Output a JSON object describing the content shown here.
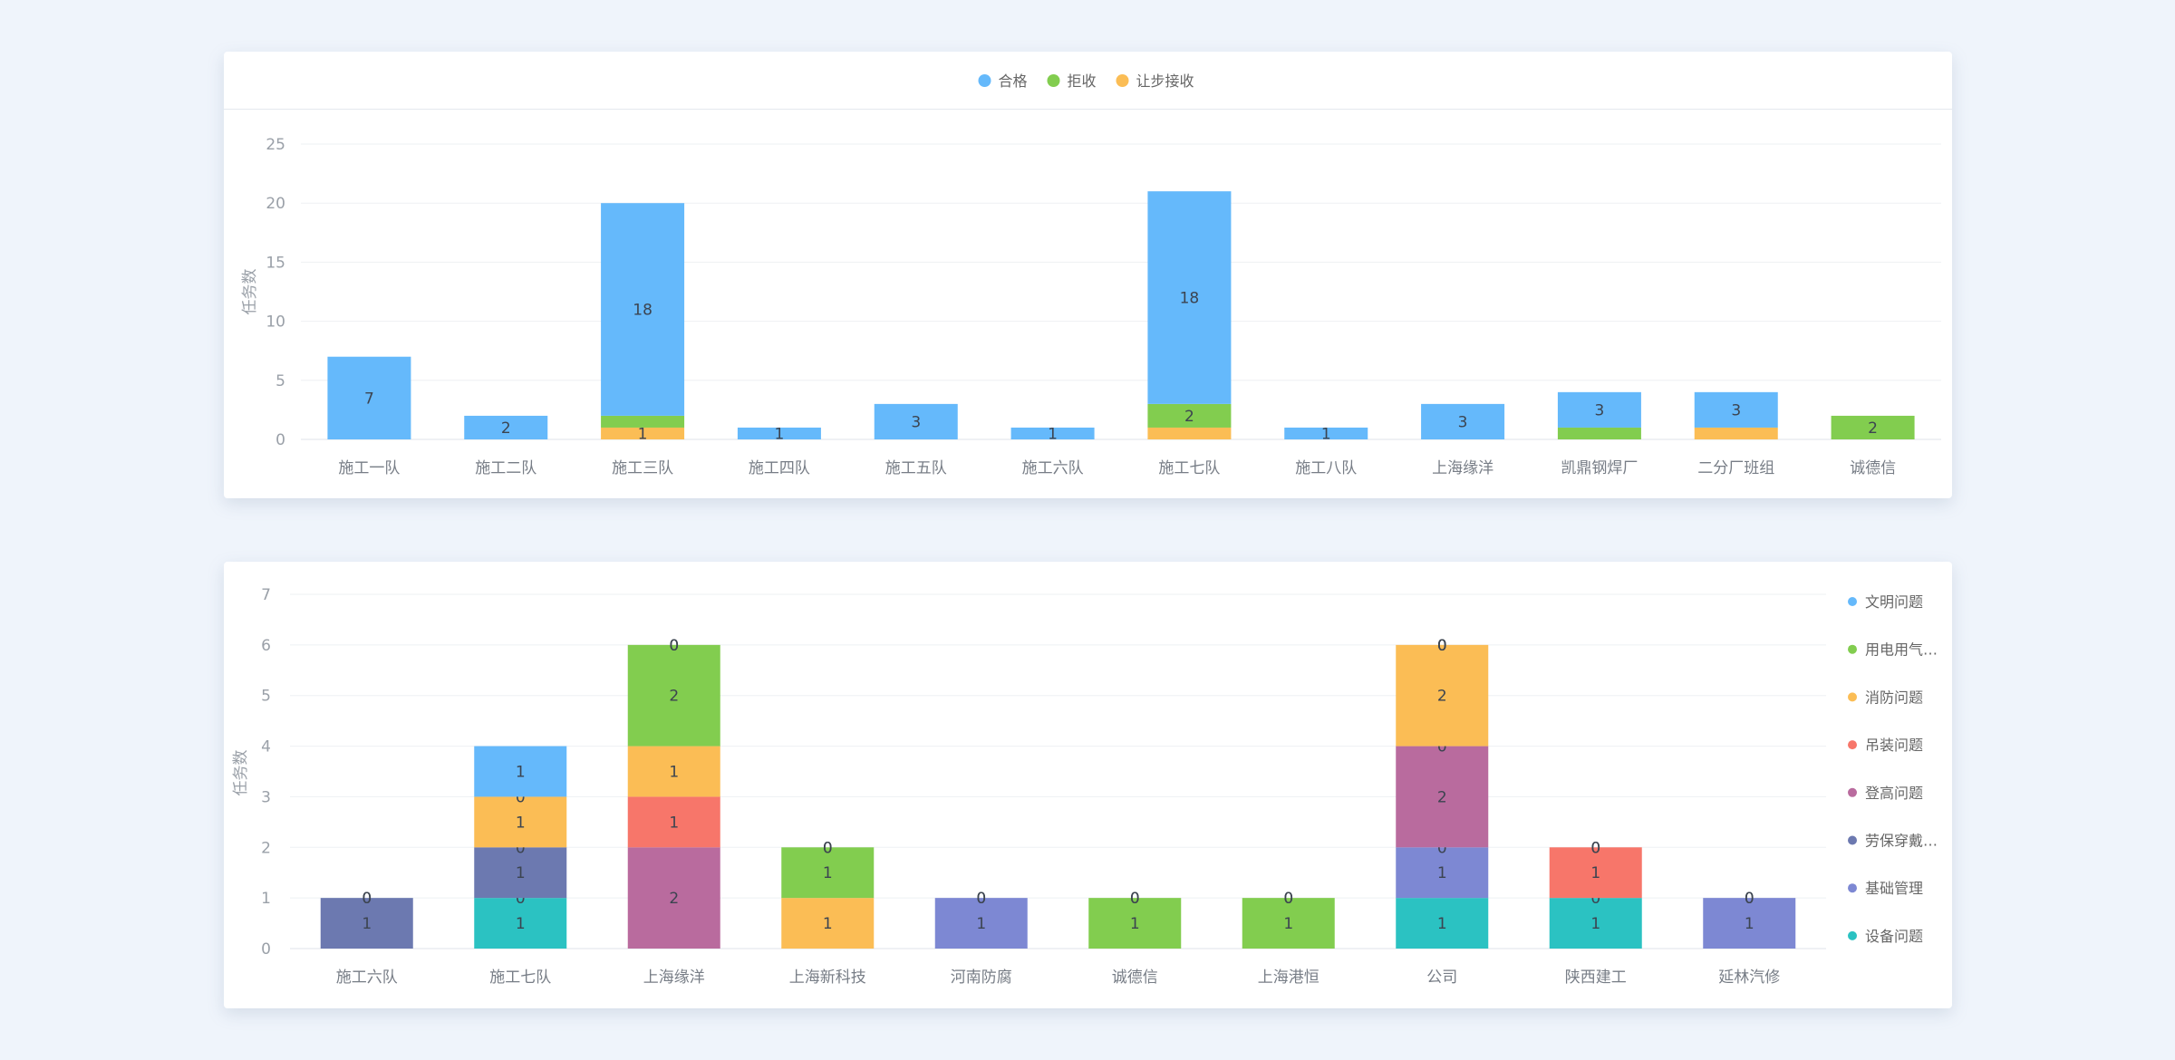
{
  "charts": [
    {
      "type": "bar",
      "stacked": true,
      "ylabel": "任务数",
      "ylim": [
        0,
        25
      ],
      "yticks": [
        "0",
        "5",
        "10",
        "15",
        "20",
        "25"
      ],
      "grid": true,
      "legend_position": "top-center",
      "categories": [
        "施工一队",
        "施工二队",
        "施工三队",
        "施工四队",
        "施工五队",
        "施工六队",
        "施工七队",
        "施工八队",
        "上海缘洋",
        "凯鼎钢焊厂",
        "二分厂班组",
        "诚德信"
      ],
      "series": [
        {
          "name": "让步接收",
          "color": "#fbbd55",
          "values": [
            0,
            0,
            1,
            0,
            0,
            0,
            1,
            0,
            0,
            0,
            1,
            0
          ],
          "labels": [
            "",
            "",
            "1",
            "",
            "",
            "",
            "",
            "",
            "",
            "",
            "",
            ""
          ]
        },
        {
          "name": "拒收",
          "color": "#82cd4f",
          "values": [
            0,
            0,
            1,
            0,
            0,
            0,
            2,
            0,
            0,
            1,
            0,
            2
          ],
          "labels": [
            "",
            "",
            "",
            "",
            "",
            "",
            "2",
            "",
            "",
            "",
            "",
            "2"
          ]
        },
        {
          "name": "合格",
          "color": "#65b9fb",
          "values": [
            7,
            2,
            18,
            1,
            3,
            1,
            18,
            1,
            3,
            3,
            3,
            0
          ],
          "labels": [
            "7",
            "2",
            "18",
            "1",
            "3",
            "1",
            "18",
            "1",
            "3",
            "3",
            "3",
            ""
          ]
        }
      ],
      "legend_order": [
        "合格",
        "拒收",
        "让步接收"
      ]
    },
    {
      "type": "bar",
      "stacked": true,
      "ylabel": "任务数",
      "ylim": [
        0,
        7
      ],
      "yticks": [
        "0",
        "1",
        "2",
        "3",
        "4",
        "5",
        "6",
        "7"
      ],
      "grid": true,
      "legend_position": "right",
      "categories": [
        "施工六队",
        "施工七队",
        "上海缘洋",
        "上海新科技",
        "河南防腐",
        "诚德信",
        "上海港恒",
        "公司",
        "陕西建工",
        "延林汽修"
      ],
      "series": [
        {
          "name": "设备问题",
          "color": "#2bc2c2",
          "values": [
            0,
            1,
            0,
            0,
            0,
            0,
            0,
            1,
            1,
            0
          ],
          "labels": [
            "",
            "1",
            "",
            "",
            "",
            "",
            "",
            "1",
            "1",
            ""
          ]
        },
        {
          "name": "基础管理",
          "color": "#7d88d3",
          "values": [
            0,
            0,
            0,
            0,
            1,
            0,
            0,
            1,
            0,
            1
          ],
          "labels": [
            "",
            "0",
            "",
            "",
            "1",
            "",
            "",
            "1",
            "0",
            "1"
          ]
        },
        {
          "name": "劳保穿戴…",
          "color": "#6c79b0",
          "values": [
            1,
            1,
            0,
            0,
            0,
            0,
            0,
            0,
            0,
            0
          ],
          "labels": [
            "1",
            "1",
            "",
            "",
            "0",
            "",
            "",
            "0",
            "",
            "0"
          ]
        },
        {
          "name": "登高问题",
          "color": "#b96b9e",
          "values": [
            0,
            0,
            2,
            0,
            0,
            0,
            0,
            2,
            0,
            0
          ],
          "labels": [
            "0",
            "0",
            "2",
            "",
            "",
            "",
            "",
            "2",
            "",
            ""
          ]
        },
        {
          "name": "吊装问题",
          "color": "#f7766a",
          "values": [
            0,
            0,
            1,
            0,
            0,
            0,
            0,
            0,
            1,
            0
          ],
          "labels": [
            "",
            "",
            "1",
            "",
            "",
            "",
            "",
            "0",
            "1",
            ""
          ]
        },
        {
          "name": "消防问题",
          "color": "#fbbd55",
          "values": [
            0,
            1,
            1,
            1,
            0,
            0,
            0,
            2,
            0,
            0
          ],
          "labels": [
            "",
            "1",
            "1",
            "1",
            "",
            "",
            "",
            "2",
            "0",
            ""
          ]
        },
        {
          "name": "用电用气…",
          "color": "#82cd4f",
          "values": [
            0,
            0,
            2,
            1,
            0,
            1,
            1,
            0,
            0,
            0
          ],
          "labels": [
            "",
            "0",
            "2",
            "1",
            "",
            "1",
            "1",
            "0",
            "",
            ""
          ]
        },
        {
          "name": "文明问题",
          "color": "#65b9fb",
          "values": [
            0,
            1,
            0,
            0,
            0,
            0,
            0,
            0,
            0,
            0
          ],
          "labels": [
            "",
            "1",
            "0",
            "0",
            "",
            "0",
            "0",
            "0",
            "",
            ""
          ]
        }
      ],
      "legend_order": [
        "文明问题",
        "用电用气…",
        "消防问题",
        "吊装问题",
        "登高问题",
        "劳保穿戴…",
        "基础管理",
        "设备问题"
      ],
      "top_labels": [
        "0",
        "",
        "0",
        "0",
        "0",
        "0",
        "0",
        "0",
        "0",
        "0"
      ]
    }
  ]
}
